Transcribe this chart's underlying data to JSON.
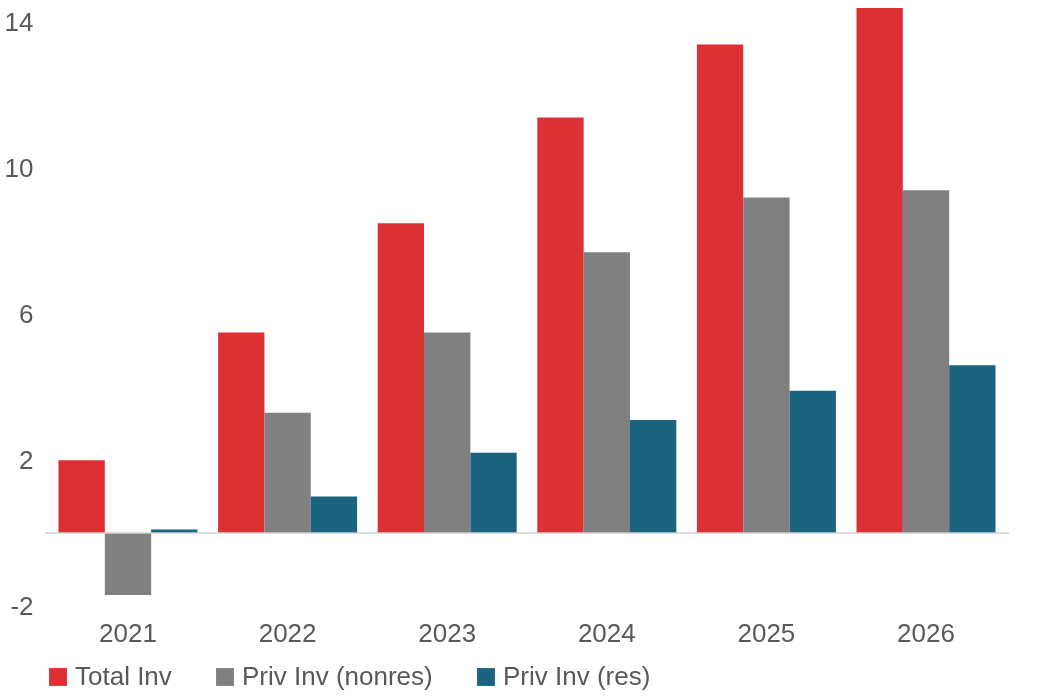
{
  "chart_data": {
    "type": "bar",
    "categories": [
      "2021",
      "2022",
      "2023",
      "2024",
      "2025",
      "2026"
    ],
    "series": [
      {
        "name": "Total Inv",
        "color": "#dc3035",
        "values": [
          2.0,
          5.5,
          8.5,
          11.4,
          13.4,
          14.4
        ]
      },
      {
        "name": "Priv Inv (nonres)",
        "color": "#808083",
        "values": [
          -1.7,
          3.3,
          5.5,
          7.7,
          9.2,
          9.4
        ]
      },
      {
        "name": "Priv Inv (res)",
        "color": "#1b6480",
        "values": [
          0.1,
          1.0,
          2.2,
          3.1,
          3.9,
          4.6
        ]
      }
    ],
    "ylim": [
      -2,
      14.4
    ],
    "yticks": [
      -2,
      2,
      6,
      10,
      14
    ],
    "grid": false,
    "legend": "bottom"
  }
}
